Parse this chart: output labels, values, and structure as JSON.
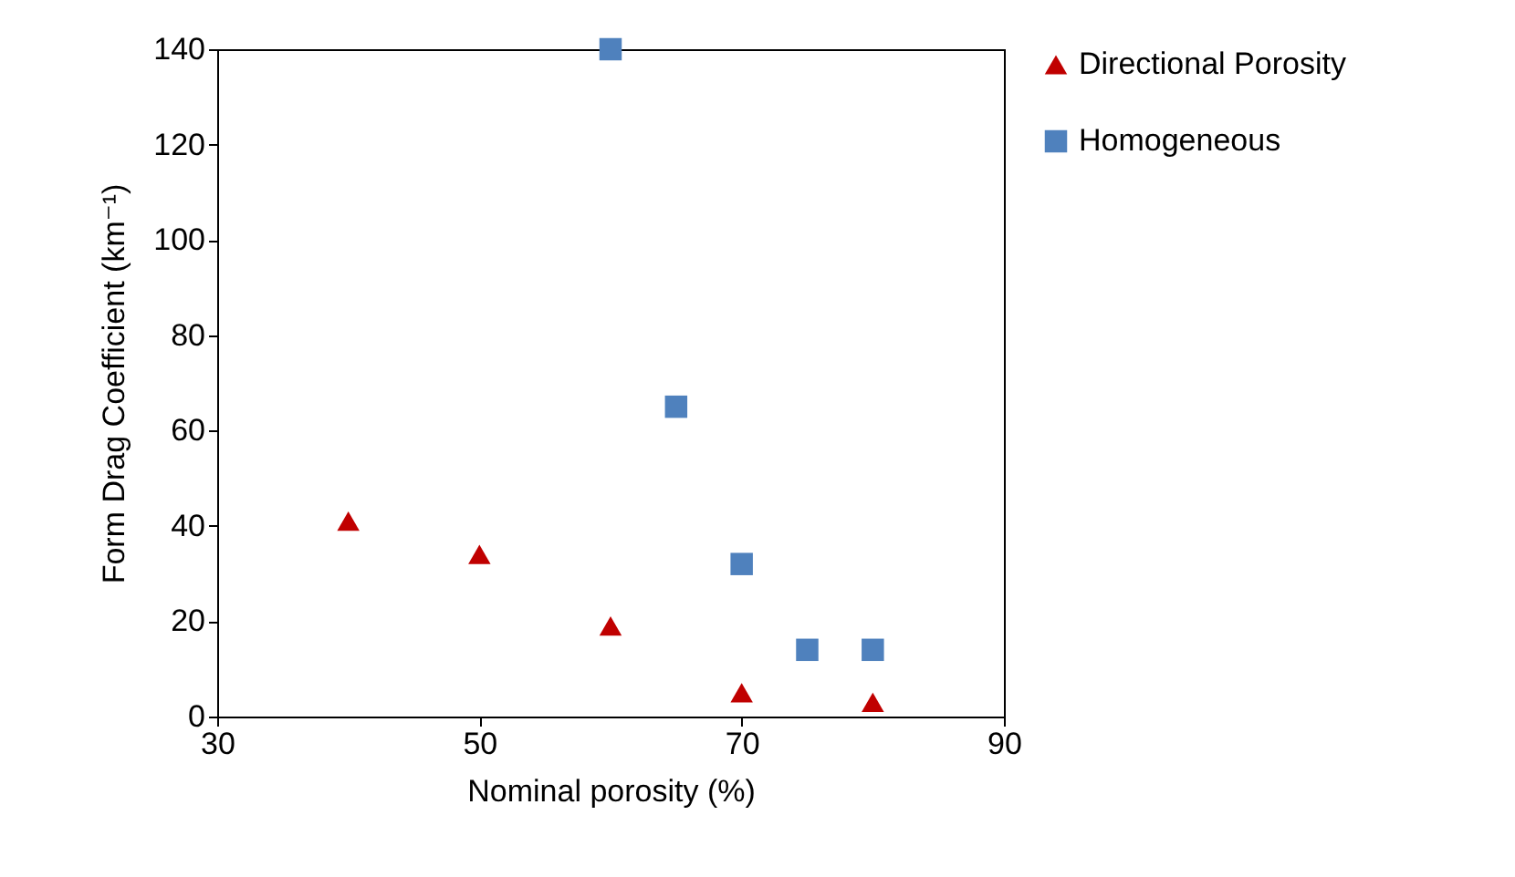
{
  "chart_data": {
    "type": "scatter",
    "xlabel": "Nominal porosity (%)",
    "ylabel": "Form Drag Coefficient (km⁻¹)",
    "xlim": [
      30,
      90
    ],
    "xticks": [
      30,
      50,
      70,
      90
    ],
    "ylim": [
      0,
      140
    ],
    "yticks": [
      0,
      20,
      40,
      60,
      80,
      100,
      120,
      140
    ],
    "grid": false,
    "legend": "right",
    "series": [
      {
        "name": "Directional Porosity",
        "color": "#c00000",
        "marker": "triangle",
        "x": [
          40,
          50,
          60,
          70,
          80
        ],
        "values": [
          41,
          34,
          19,
          5,
          3
        ]
      },
      {
        "name": "Homogeneous",
        "color": "#4f81bd",
        "marker": "square",
        "x": [
          60,
          65,
          70,
          75,
          80
        ],
        "values": [
          140,
          65,
          32,
          14,
          14
        ]
      }
    ]
  }
}
